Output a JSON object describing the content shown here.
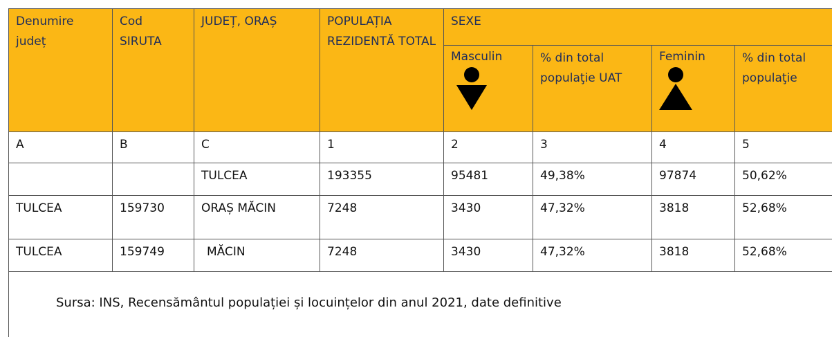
{
  "table": {
    "header": [
      "Denumire județ",
      "Cod SIRUTA",
      "JUDEȚ, ORAȘ",
      "POPULAȚIA REZIDENTĂ TOTAL",
      "SEXE"
    ],
    "subheader": [
      "Masculin",
      "% din total populaţie UAT",
      "Feminin",
      "% din total populaţie"
    ],
    "rows": [
      [
        "A",
        "B",
        "C",
        "1",
        "2",
        "3",
        "4",
        "5"
      ],
      [
        null,
        null,
        "TULCEA",
        "193355",
        "95481",
        "49,38%",
        "97874",
        "50,62%"
      ],
      [
        "TULCEA",
        "159730",
        "ORAȘ MĂCIN",
        "7248",
        "3430",
        "47,32%",
        "3818",
        "52,68%"
      ],
      [
        "TULCEA",
        "159749",
        "MĂCIN",
        "7248",
        "3430",
        "47,32%",
        "3818",
        "52,68%"
      ]
    ],
    "source": "Sursa: INS, Recensământul populației și locuințelor din anul 2021, date definitive"
  }
}
